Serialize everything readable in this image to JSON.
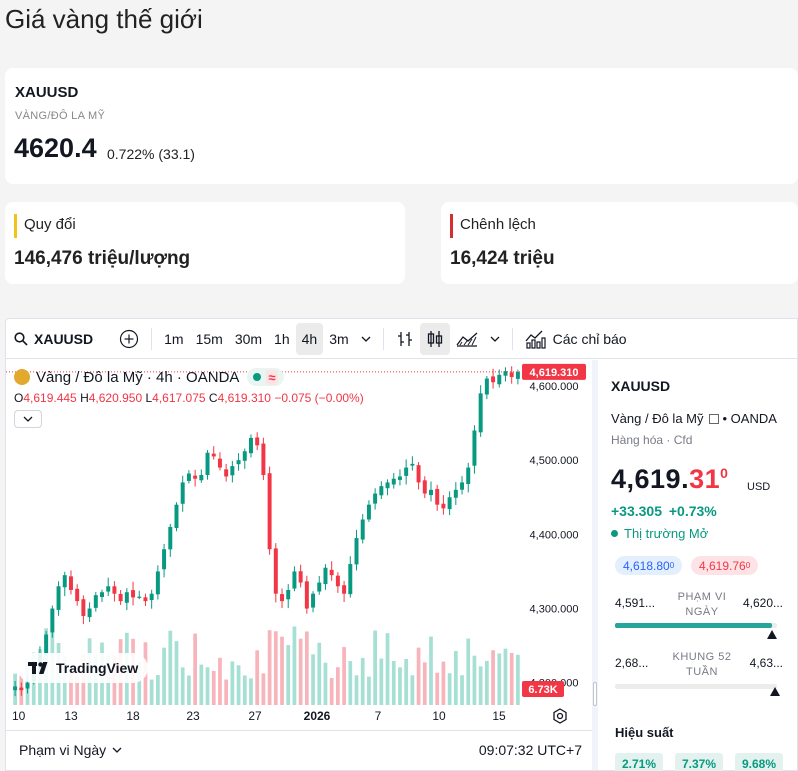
{
  "page_title": "Giá vàng thế giới",
  "ticker": {
    "symbol": "XAUUSD",
    "name": "VÀNG/ĐÔ LA MỸ",
    "price": "4620.4",
    "change": "0.722% (33.1)"
  },
  "conversion": {
    "label": "Quy đổi",
    "value": "146,476 triệu/lượng",
    "bar_color": "#f0c419"
  },
  "difference": {
    "label": "Chênh lệch",
    "value": "16,424 triệu",
    "bar_color": "#d32f2f"
  },
  "toolbar": {
    "symbol": "XAUUSD",
    "intervals": [
      "1m",
      "15m",
      "30m",
      "1h",
      "4h",
      "3m"
    ],
    "active_interval": "4h",
    "indicators_label": "Các chỉ báo"
  },
  "chart": {
    "legend_title": "Vàng / Đô la Mỹ · 4h · OANDA",
    "ohlc": {
      "o_label": "O",
      "o": "4,619.445",
      "h_label": "H",
      "h": "4,620.950",
      "l_label": "L",
      "l": "4,617.075",
      "c_label": "C",
      "c": "4,619.310",
      "chg": "−0.075 (−0.00%)"
    },
    "last_price_label": "4,619.310",
    "volume_label": "6.73K",
    "brand": "TradingView",
    "range_label": "Phạm vi Ngày",
    "clock": "09:07:32 UTC+7",
    "colors": {
      "up": "#089981",
      "down": "#f23645",
      "vol_up": "#a6dfd3",
      "vol_down": "#f7b4ba"
    }
  },
  "chart_data": {
    "type": "candlestick",
    "title": "Vàng / Đô la Mỹ · 4h · OANDA",
    "x_tick_labels": [
      "10",
      "13",
      "18",
      "23",
      "27",
      "2026",
      "7",
      "10",
      "15"
    ],
    "y_tick_labels": [
      "4,600.000",
      "4,500.000",
      "4,400.000",
      "4,300.000",
      "4,200.000"
    ],
    "ylim": [
      4170,
      4635
    ],
    "close_path": [
      4195,
      4190,
      4200,
      4215,
      4240,
      4265,
      4300,
      4330,
      4345,
      4325,
      4310,
      4290,
      4300,
      4318,
      4322,
      4330,
      4320,
      4310,
      4322,
      4315,
      4316,
      4310,
      4320,
      4350,
      4380,
      4410,
      4440,
      4470,
      4482,
      4475,
      4480,
      4510,
      4505,
      4490,
      4478,
      4492,
      4500,
      4512,
      4530,
      4520,
      4480,
      4380,
      4320,
      4310,
      4325,
      4350,
      4335,
      4300,
      4320,
      4335,
      4355,
      4345,
      4330,
      4320,
      4360,
      4395,
      4420,
      4440,
      4455,
      4465,
      4470,
      4475,
      4478,
      4490,
      4495,
      4470,
      4455,
      4460,
      4440,
      4435,
      4450,
      4460,
      4470,
      4490,
      4540,
      4590,
      4610,
      4605,
      4615,
      4620,
      4612,
      4619
    ]
  },
  "side_panel": {
    "symbol": "XAUUSD",
    "description": "Vàng / Đô la Mỹ",
    "exchange": "• OANDA",
    "category": "Hàng hóa · Cfd",
    "price_main": "4,619.",
    "price_red": "31",
    "price_sup": "0",
    "currency": "USD",
    "change": "+33.305 +0.73%",
    "market_status": "Thị trường Mở",
    "bid": "4,618.80",
    "bid_sup": "0",
    "ask": "4,619.76",
    "ask_sup": "0",
    "day_range": {
      "low": "4,591...",
      "label": "PHẠM VI NGÀY",
      "high": "4,620...",
      "position": 0.97
    },
    "week52_range": {
      "low": "2,68...",
      "label": "KHUNG 52 TUẦN",
      "high": "4,63...",
      "position": 0.99
    },
    "performance_title": "Hiệu suất",
    "performance": [
      "2.71%",
      "7.37%",
      "9.68%"
    ]
  }
}
